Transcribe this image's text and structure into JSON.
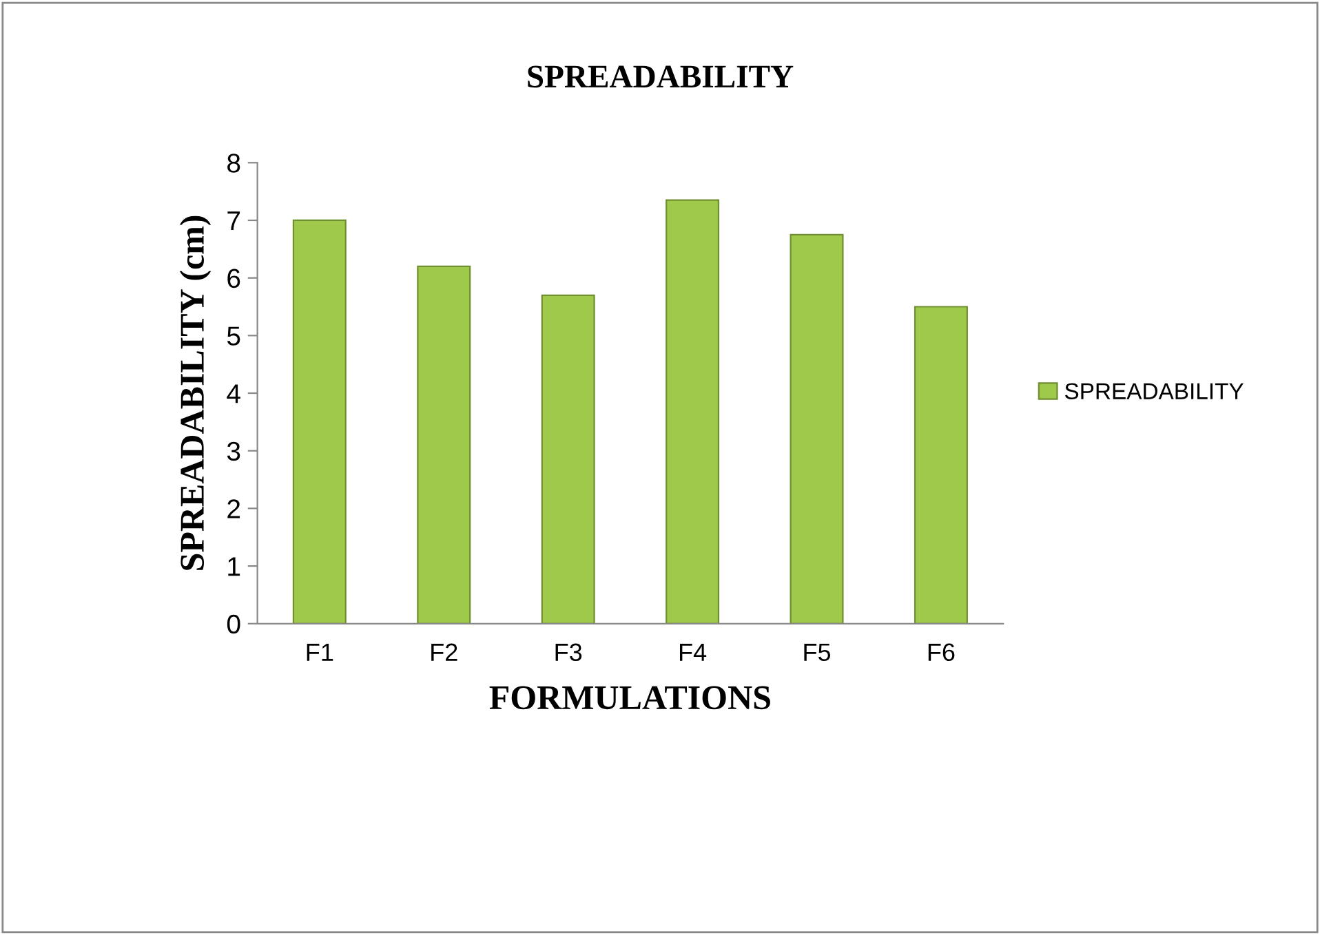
{
  "chart_data": {
    "type": "bar",
    "title": "SPREADABILITY",
    "xlabel": "FORMULATIONS",
    "ylabel": "SPREADABILITY (cm)",
    "categories": [
      "F1",
      "F2",
      "F3",
      "F4",
      "F5",
      "F6"
    ],
    "series": [
      {
        "name": "SPREADABILITY",
        "color": "#9fc94a",
        "values": [
          7.0,
          6.2,
          5.7,
          7.35,
          6.75,
          5.5
        ]
      }
    ],
    "ylim": [
      0,
      8
    ],
    "yticks": [
      0,
      1,
      2,
      3,
      4,
      5,
      6,
      7,
      8
    ],
    "grid": false,
    "legend": "right"
  }
}
